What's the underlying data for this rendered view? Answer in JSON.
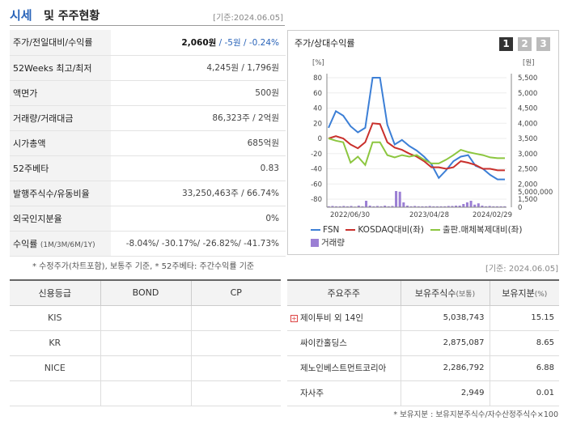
{
  "header": {
    "title_main": "시세",
    "title_rest": "및 주주현황",
    "date": "[기준:2024.06.05]"
  },
  "summary": {
    "rows": [
      {
        "label": "주가/전일대비/수익률",
        "value_price": "2,060원",
        "value_rest": " / -5원 / -0.24%"
      },
      {
        "label": "52Weeks 최고/최저",
        "value": "4,245원 / 1,796원"
      },
      {
        "label": "액면가",
        "value": "500원"
      },
      {
        "label": "거래량/거래대금",
        "value": "86,323주 / 2억원"
      },
      {
        "label": "시가총액",
        "value": "685억원"
      },
      {
        "label": "52주베타",
        "value": "0.83"
      },
      {
        "label": "발행주식수/유동비율",
        "value": "33,250,463주 / 66.74%"
      },
      {
        "label": "외국인지분율",
        "value": "0%"
      },
      {
        "label": "수익률",
        "label_small": "(1M/3M/6M/1Y)",
        "value": "-8.04%/ -30.17%/ -26.82%/ -41.73%"
      }
    ],
    "note": "* 수정주가(차트포함), 보통주 기준, * 52주베타: 주간수익률 기준"
  },
  "chart_panel": {
    "title": "주가/상대수익률",
    "tabs": [
      "1",
      "2",
      "3"
    ],
    "left_unit": "[%]",
    "right_unit": "[원]",
    "vol_axis_label": "5,000,000",
    "vol_axis_zero": "0",
    "legend": {
      "fsn": "FSN",
      "kosdaq": "KOSDAQ대비(좌)",
      "sector": "출판.매체복제대비(좌)",
      "volume": "거래량"
    },
    "colors": {
      "fsn": "#3c7fd6",
      "kosdaq": "#c9302c",
      "sector": "#8cc63f",
      "volume": "#9b7fd4"
    }
  },
  "chart_data": {
    "type": "line",
    "x_ticks": [
      "2022/06/30",
      "2023/04/28",
      "2024/02/29"
    ],
    "left_axis": {
      "unit": "[%]",
      "ticks": [
        80,
        60,
        40,
        20,
        0,
        -20,
        -40,
        -60,
        -80
      ],
      "ylim": [
        -80,
        80
      ]
    },
    "right_axis": {
      "unit": "[원]",
      "ticks": [
        "5,500",
        "5,000",
        "4,500",
        "4,000",
        "3,500",
        "3,000",
        "2,500",
        "2,000",
        "1,500"
      ],
      "ylim": [
        1500,
        5500
      ]
    },
    "series": [
      {
        "name": "FSN",
        "axis": "right",
        "values": [
          3850,
          4400,
          4250,
          3900,
          3700,
          3850,
          5500,
          5500,
          3950,
          3300,
          3450,
          3250,
          3100,
          2900,
          2650,
          2200,
          2450,
          2750,
          2900,
          2950,
          2600,
          2500,
          2300,
          2150,
          2150
        ]
      },
      {
        "name": "KOSDAQ대비(좌)",
        "axis": "left",
        "values": [
          0,
          3,
          0,
          -8,
          -13,
          -5,
          20,
          19,
          -5,
          -12,
          -15,
          -20,
          -24,
          -30,
          -38,
          -38,
          -40,
          -38,
          -30,
          -32,
          -35,
          -40,
          -40,
          -42,
          -42
        ]
      },
      {
        "name": "출판.매체복제대비(좌)",
        "axis": "left",
        "values": [
          0,
          -3,
          -5,
          -32,
          -24,
          -35,
          -5,
          -5,
          -22,
          -25,
          -22,
          -24,
          -22,
          -28,
          -33,
          -33,
          -28,
          -22,
          -15,
          -18,
          -20,
          -22,
          -25,
          -26,
          -26
        ]
      }
    ],
    "volume": {
      "axis_label": "5,000,000",
      "values": [
        0.3,
        0.4,
        0.3,
        0.3,
        0.4,
        0.3,
        0.4,
        0.2,
        0.5,
        0.3,
        2.0,
        0.5,
        0.3,
        0.4,
        0.3,
        0.5,
        0.3,
        0.4,
        5.0,
        4.8,
        1.5,
        0.5,
        0.3,
        0.4,
        0.3,
        0.3,
        0.3,
        0.4,
        0.3,
        0.3,
        0.3,
        0.3,
        0.4,
        0.4,
        0.5,
        0.5,
        1.0,
        1.5,
        2.0,
        0.8,
        1.2,
        0.5,
        0.3,
        0.4,
        0.3,
        0.3,
        0.3,
        0.3
      ]
    }
  },
  "date2": "[기준: 2024.06.05]",
  "credit": {
    "headers": [
      "신용등급",
      "BOND",
      "CP"
    ],
    "rows": [
      [
        "KIS",
        "",
        ""
      ],
      [
        "KR",
        "",
        ""
      ],
      [
        "NICE",
        "",
        ""
      ],
      [
        "",
        "",
        ""
      ]
    ]
  },
  "holders": {
    "headers": {
      "h1": "주요주주",
      "h2": "보유주식수",
      "h2_small": "(보통)",
      "h3": "보유지분",
      "h3_small": "(%)"
    },
    "plus_glyph": "+",
    "rows": [
      {
        "name": "제이투비 외 14인",
        "shares": "5,038,743",
        "pct": "15.15",
        "expand": true
      },
      {
        "name": "싸이칸홀딩스",
        "shares": "2,875,087",
        "pct": "8.65",
        "expand": false
      },
      {
        "name": "제노인베스트먼트코리아",
        "shares": "2,286,792",
        "pct": "6.88",
        "expand": false
      },
      {
        "name": "자사주",
        "shares": "2,949",
        "pct": "0.01",
        "expand": false
      }
    ],
    "note": "* 보유지분 : 보유지분주식수/자수산정주식수×100"
  }
}
